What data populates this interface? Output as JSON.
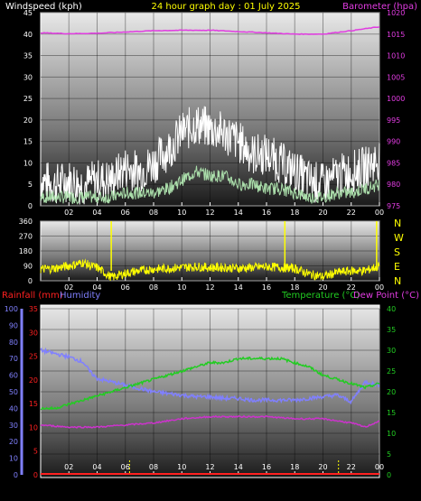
{
  "header": {
    "left_title": "Windspeed (kph)",
    "center_title": "24 hour graph day : 01 July 2025",
    "right_title": "Barometer (hpa)"
  },
  "colors": {
    "gust": "#ffffff",
    "wind": "#aaddaa",
    "barometer": "#e13ce1",
    "direction": "#ffff00",
    "humidity": "#8080ff",
    "rain": "#ff2020",
    "temperature": "#22cc22",
    "dewpoint": "#cc33cc",
    "tick": "#ffff00"
  },
  "panel3_titles": {
    "rainfall": "Rainfall (mm)",
    "humidity": "Humidity",
    "temperature": "Temperature (°C)",
    "dewpoint": "Dew Point (°C)"
  },
  "chart_data": [
    {
      "type": "line",
      "title": "Windspeed (kph) / Barometer (hpa)",
      "x_ticks": [
        "02",
        "04",
        "06",
        "08",
        "10",
        "12",
        "14",
        "16",
        "18",
        "20",
        "22",
        "00"
      ],
      "y_left": {
        "label": "Windspeed (kph)",
        "range": [
          0,
          45
        ],
        "ticks": [
          0,
          5,
          10,
          15,
          20,
          25,
          30,
          35,
          40,
          45
        ]
      },
      "y_right": {
        "label": "Barometer (hpa)",
        "range": [
          975,
          1020
        ],
        "ticks": [
          975,
          980,
          985,
          990,
          995,
          1000,
          1005,
          1010,
          1015,
          1020
        ]
      },
      "series": [
        {
          "name": "Gust",
          "axis": "left",
          "x": [
            0,
            1,
            2,
            3,
            4,
            5,
            6,
            7,
            8,
            9,
            10,
            11,
            12,
            13,
            14,
            15,
            16,
            17,
            18,
            19,
            20,
            21,
            22,
            23,
            24
          ],
          "y": [
            6,
            5,
            6,
            5,
            6,
            6,
            9,
            8,
            10,
            13,
            17,
            19,
            18,
            17,
            15,
            12,
            12,
            10,
            8,
            6,
            5,
            7,
            8,
            9,
            11
          ]
        },
        {
          "name": "Wind speed",
          "axis": "left",
          "x": [
            0,
            1,
            2,
            3,
            4,
            5,
            6,
            7,
            8,
            9,
            10,
            11,
            12,
            13,
            14,
            15,
            16,
            17,
            18,
            19,
            20,
            21,
            22,
            23,
            24
          ],
          "y": [
            2,
            2,
            2,
            2,
            2,
            2,
            3,
            3,
            3,
            4,
            6,
            8,
            7,
            7,
            5,
            5,
            4,
            4,
            3,
            2,
            2,
            3,
            3,
            4,
            5
          ]
        },
        {
          "name": "Barometer",
          "axis": "right",
          "x": [
            0,
            2,
            4,
            6,
            8,
            10,
            12,
            14,
            16,
            18,
            20,
            22,
            24
          ],
          "y": [
            1015.3,
            1015.1,
            1015.2,
            1015.5,
            1015.8,
            1015.9,
            1015.9,
            1015.6,
            1015.3,
            1015.0,
            1015.0,
            1015.8,
            1016.7
          ]
        }
      ]
    },
    {
      "type": "scatter",
      "title": "Wind direction",
      "x_ticks": [
        "02",
        "04",
        "06",
        "08",
        "10",
        "12",
        "14",
        "16",
        "18",
        "20",
        "22",
        "00"
      ],
      "y_left": {
        "range": [
          0,
          360
        ],
        "ticks": [
          0,
          90,
          180,
          270,
          360
        ]
      },
      "y_right_labels": [
        "N",
        "W",
        "S",
        "E",
        "N"
      ],
      "series": [
        {
          "name": "Direction",
          "x": [
            0,
            1,
            2,
            3,
            3.5,
            4,
            5,
            6,
            7,
            8,
            9,
            10,
            11,
            12,
            13,
            14,
            15,
            16,
            17,
            18,
            19,
            20,
            21,
            22,
            23,
            24
          ],
          "y": [
            70,
            75,
            90,
            110,
            90,
            80,
            20,
            45,
            60,
            70,
            75,
            80,
            85,
            80,
            80,
            75,
            80,
            85,
            80,
            75,
            40,
            25,
            50,
            60,
            60,
            90
          ]
        }
      ]
    },
    {
      "type": "line",
      "title": "Rainfall (mm) / Humidity / Temperature (°C) / Dew Point (°C)",
      "x_ticks": [
        "02",
        "04",
        "06",
        "08",
        "10",
        "12",
        "14",
        "16",
        "18",
        "20",
        "22",
        "00"
      ],
      "y_humidity": {
        "label": "Humidity",
        "range": [
          0,
          100
        ],
        "ticks": [
          0,
          10,
          20,
          30,
          40,
          50,
          60,
          70,
          80,
          90,
          100
        ]
      },
      "y_rain": {
        "label": "Rainfall (mm)",
        "range": [
          0,
          35
        ],
        "ticks": [
          0,
          5,
          10,
          15,
          20,
          25,
          30,
          35
        ]
      },
      "y_right": {
        "label": "Temperature (°C)",
        "range": [
          0,
          40
        ],
        "ticks": [
          0,
          5,
          10,
          15,
          20,
          25,
          30,
          35,
          40
        ]
      },
      "series": [
        {
          "name": "Humidity",
          "axis": "humidity",
          "x": [
            0,
            1,
            2,
            3,
            3.5,
            4,
            5,
            6,
            7,
            8,
            9,
            10,
            11,
            12,
            13,
            14,
            15,
            16,
            17,
            18,
            19,
            20,
            21,
            22,
            23,
            24
          ],
          "y": [
            75,
            73,
            71,
            68,
            62,
            58,
            56,
            54,
            52,
            50,
            49,
            48,
            47,
            47,
            46,
            46,
            45,
            45,
            45,
            45,
            46,
            47,
            48,
            44,
            56,
            54
          ]
        },
        {
          "name": "Temperature",
          "axis": "right",
          "x": [
            0,
            1,
            2,
            3,
            4,
            5,
            6,
            7,
            8,
            9,
            10,
            11,
            12,
            13,
            14,
            15,
            16,
            17,
            18,
            19,
            20,
            21,
            22,
            23,
            24
          ],
          "y": [
            16,
            16,
            17,
            18,
            19,
            20,
            21,
            22,
            23,
            24,
            25,
            26,
            27,
            27,
            28,
            28,
            28,
            28,
            27,
            26,
            24,
            23,
            22,
            21,
            22
          ]
        },
        {
          "name": "Dew Point",
          "axis": "right",
          "x": [
            0,
            2,
            4,
            6,
            8,
            10,
            12,
            14,
            16,
            18,
            20,
            22,
            23,
            24
          ],
          "y": [
            12,
            11.5,
            11.5,
            12,
            12.5,
            13.5,
            14,
            14,
            14,
            13.5,
            13.5,
            12.5,
            11.5,
            13
          ]
        },
        {
          "name": "Rainfall",
          "axis": "rain",
          "x": [
            0,
            24
          ],
          "y": [
            0,
            0
          ]
        }
      ]
    }
  ]
}
